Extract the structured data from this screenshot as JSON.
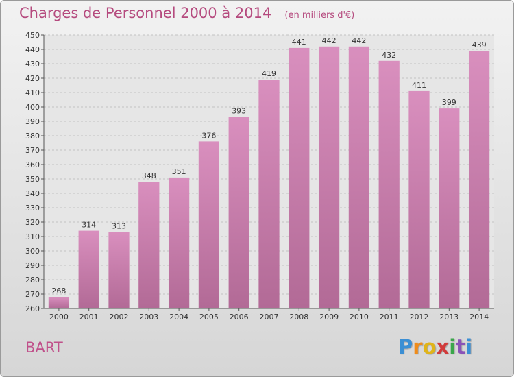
{
  "title": "Charges de Personnel 2000 à 2014",
  "subtitle": "(en milliers d'€)",
  "commune": "BART",
  "logo": {
    "letters": [
      "P",
      "r",
      "o",
      "x",
      "i",
      "t",
      "i"
    ],
    "colors": [
      "#3b8fd4",
      "#f08c1a",
      "#e0b419",
      "#d13b3b",
      "#3aa64a",
      "#8a52b8",
      "#3b8fd4"
    ]
  },
  "colors": {
    "bar": "#d98fbe",
    "bar_dark": "#b26a96",
    "title": "#b54a7e"
  },
  "chart_data": {
    "type": "bar",
    "categories": [
      "2000",
      "2001",
      "2002",
      "2003",
      "2004",
      "2005",
      "2006",
      "2007",
      "2008",
      "2009",
      "2010",
      "2011",
      "2012",
      "2013",
      "2014"
    ],
    "values": [
      268,
      314,
      313,
      348,
      351,
      376,
      393,
      419,
      441,
      442,
      442,
      432,
      411,
      399,
      439
    ],
    "ylim": [
      260,
      450
    ],
    "yticks": [
      260,
      270,
      280,
      290,
      300,
      310,
      320,
      330,
      340,
      350,
      360,
      370,
      380,
      390,
      400,
      410,
      420,
      430,
      440,
      450
    ],
    "grid": true,
    "legend": "none"
  }
}
